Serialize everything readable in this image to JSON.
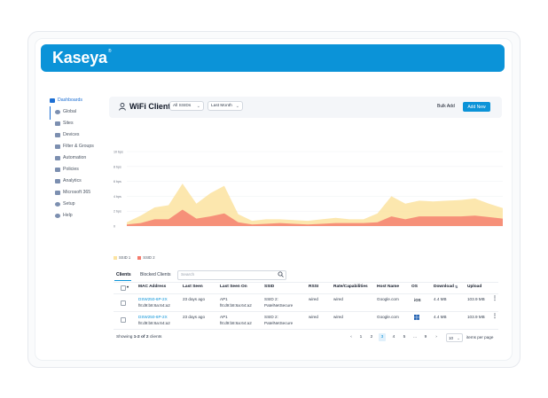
{
  "brand": {
    "name": "Kaseya",
    "trademark": "®",
    "bar_color": "#0b93d8"
  },
  "sidebar": {
    "items": [
      {
        "label": "Dashboards",
        "icon": "grid-icon",
        "active": true
      },
      {
        "label": "Global",
        "icon": "globe-icon"
      },
      {
        "label": "Sites",
        "icon": "building-icon"
      },
      {
        "label": "Devices",
        "icon": "devices-icon"
      },
      {
        "label": "Filter & Groups",
        "icon": "filter-icon"
      },
      {
        "label": "Automation",
        "icon": "automation-icon"
      },
      {
        "label": "Policies",
        "icon": "policies-icon"
      },
      {
        "label": "Analytics",
        "icon": "analytics-icon"
      },
      {
        "label": "Microsoft 365",
        "icon": "microsoft-icon"
      },
      {
        "label": "Setup",
        "icon": "setup-icon"
      },
      {
        "label": "Help",
        "icon": "help-icon"
      }
    ]
  },
  "header": {
    "title": "WiFi Clients",
    "ssid_filter": "All SSIDs",
    "period_filter": "Last Month",
    "bulk_add": "Bulk Add",
    "add_new": "Add New"
  },
  "chart_data": {
    "type": "area",
    "yticks": [
      "10 bps",
      "8 bps",
      "6 bps",
      "4 bps",
      "2 bps",
      "0"
    ],
    "ylim": [
      0,
      10
    ],
    "series": [
      {
        "name": "SSID 1",
        "color": "#fbe3a0",
        "values": [
          0.5,
          1.4,
          2.5,
          2.8,
          5.7,
          3.0,
          4.4,
          5.4,
          1.6,
          0.7,
          0.9,
          0.9,
          0.8,
          0.7,
          0.9,
          1.1,
          0.9,
          0.9,
          1.7,
          4.0,
          3.0,
          3.4,
          3.3,
          3.4,
          3.5,
          3.7,
          3.0,
          2.4
        ]
      },
      {
        "name": "SSID 2",
        "color": "#f47b6c",
        "values": [
          0.2,
          0.4,
          0.9,
          0.9,
          2.2,
          1.0,
          1.3,
          1.7,
          0.5,
          0.2,
          0.3,
          0.4,
          0.3,
          0.2,
          0.3,
          0.4,
          0.4,
          0.4,
          0.5,
          1.3,
          0.9,
          1.3,
          1.3,
          1.3,
          1.3,
          1.4,
          1.2,
          1.0
        ]
      }
    ],
    "legend": [
      "SSID 1",
      "SSID 2"
    ],
    "grid": true,
    "legend_position": "bottom-left"
  },
  "tabs": {
    "clients": "Clients",
    "blocked": "Blocked Clients"
  },
  "search": {
    "placeholder": "Search"
  },
  "table": {
    "headers": [
      "MAC Address",
      "Last Seen",
      "Last Seen On",
      "SSID",
      "RSSI",
      "Rate/Capabilities",
      "Host Name",
      "OS",
      "Download",
      "Upload"
    ],
    "rows": [
      {
        "mac1": "DSW250-6P-2X",
        "mac2": "f8:d9:b8:6a:64:a2",
        "last_seen": "23 days ago",
        "on1": "AP1",
        "on2": "f8:d9:b8:6a:64:a2",
        "ssid1": "SSID 2:",
        "ssid2": "PatelNetSecure",
        "rssi": "wired",
        "rate": "wired",
        "host": "Google.com",
        "os": "iOS",
        "download": "4.4 MB",
        "upload": "103.9 MB"
      },
      {
        "mac1": "DSW250-6P-2X",
        "mac2": "f8:d9:b8:6a:64:a2",
        "last_seen": "23 days ago",
        "on1": "AP1",
        "on2": "f8:d9:b8:6a:64:a2",
        "ssid1": "SSID 2:",
        "ssid2": "PatelNetSecure",
        "rssi": "wired",
        "rate": "wired",
        "host": "Google.com",
        "os": "windows",
        "download": "4.4 MB",
        "upload": "103.9 MB"
      }
    ]
  },
  "footer": {
    "showing_prefix": "Showing ",
    "showing_range": "1-2 of 2",
    "showing_suffix": " clients",
    "pages": [
      "1",
      "2",
      "3",
      "4",
      "5",
      "...",
      "9"
    ],
    "active_page": "3",
    "per_page": "10",
    "per_page_label": "items per page"
  }
}
